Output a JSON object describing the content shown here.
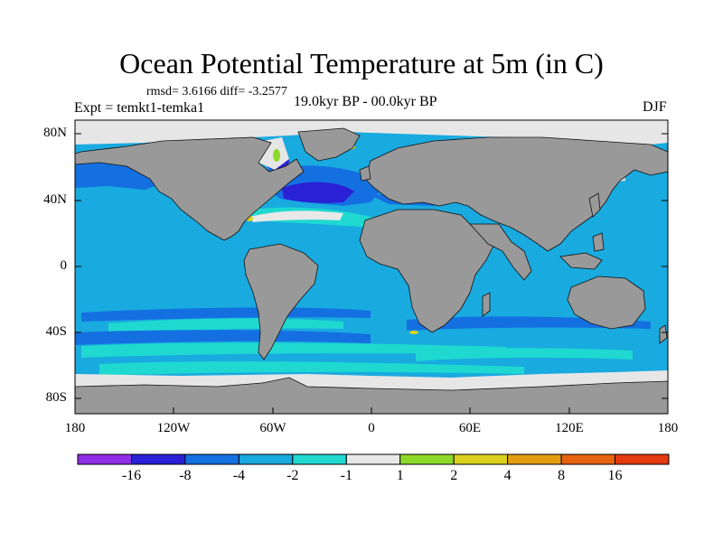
{
  "title": "Ocean Potential Temperature at 5m (in C)",
  "stats": "rmsd= 3.6166 diff= -3.2577",
  "experiment": "Expt = temkt1-temka1",
  "period": "19.0kyr BP - 00.0kyr BP",
  "season": "DJF",
  "lat_ticks": [
    "80N",
    "40N",
    "0",
    "40S",
    "80S"
  ],
  "lon_ticks": [
    "180",
    "120W",
    "60W",
    "0",
    "60E",
    "120E",
    "180"
  ],
  "colors": {
    "land": "#999999",
    "missing": "#e6e6e6",
    "bins": [
      "#8f2fe6",
      "#2a21d6",
      "#1470e0",
      "#19aadf",
      "#1fd9d0",
      "#e8e8e8",
      "#8dd92a",
      "#dcd21e",
      "#e39d0f",
      "#e6640f",
      "#e33a0f"
    ]
  },
  "legend": {
    "labels": [
      "-16",
      "-8",
      "-4",
      "-2",
      "-1",
      "1",
      "2",
      "4",
      "8",
      "16"
    ]
  }
}
